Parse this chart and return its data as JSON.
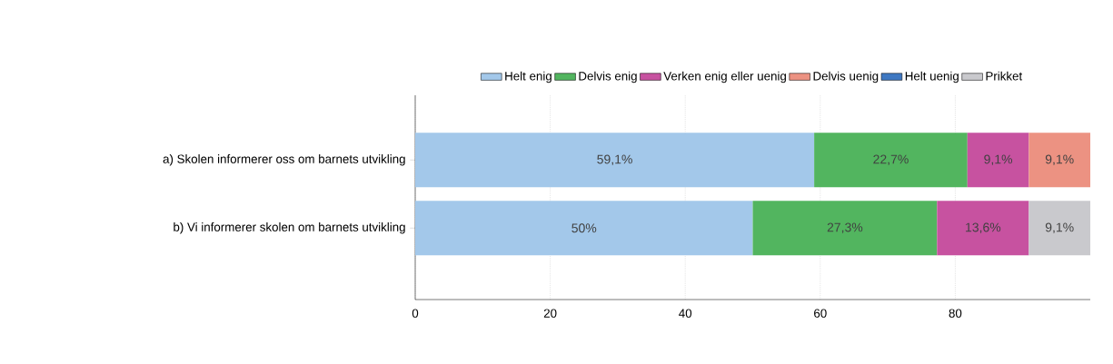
{
  "chart_data": {
    "type": "bar",
    "orientation": "horizontal",
    "stacked": true,
    "categories": [
      "a) Skolen informerer oss om barnets utvikling",
      "b) Vi informerer skolen om barnets utvikling"
    ],
    "series": [
      {
        "name": "Helt enig",
        "color": "#a3c8ea",
        "values": [
          59.1,
          50
        ],
        "value_labels": [
          "59,1%",
          "50%"
        ]
      },
      {
        "name": "Delvis enig",
        "color": "#52b55f",
        "values": [
          22.7,
          27.3
        ],
        "value_labels": [
          "22,7%",
          "27,3%"
        ]
      },
      {
        "name": "Verken enig eller uenig",
        "color": "#c752a0",
        "values": [
          9.1,
          13.6
        ],
        "value_labels": [
          "9,1%",
          "13,6%"
        ]
      },
      {
        "name": "Delvis uenig",
        "color": "#ec9282",
        "values": [
          9.1,
          null
        ],
        "value_labels": [
          "9,1%",
          null
        ]
      },
      {
        "name": "Helt uenig",
        "color": "#3f78c2",
        "values": [
          null,
          null
        ],
        "value_labels": [
          null,
          null
        ]
      },
      {
        "name": "Prikket",
        "color": "#c9c9cd",
        "values": [
          null,
          9.1
        ],
        "value_labels": [
          null,
          "9,1%"
        ]
      }
    ],
    "xlim": [
      0,
      100
    ],
    "xticks": [
      0,
      20,
      40,
      60,
      80
    ],
    "grid": "x",
    "legend": "top"
  }
}
